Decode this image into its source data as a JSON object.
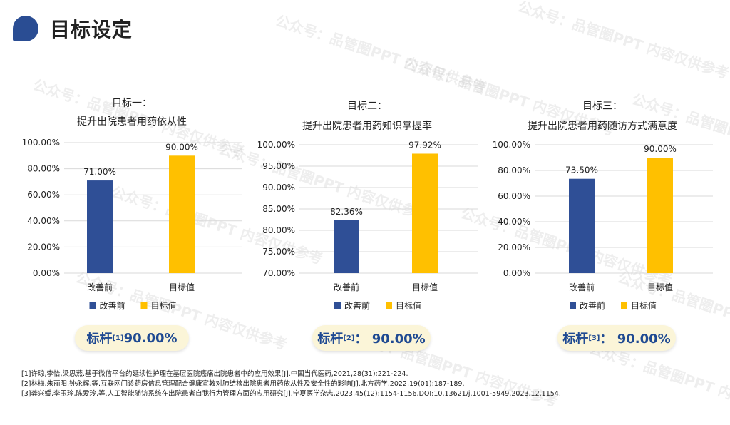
{
  "header": {
    "title": "目标设定"
  },
  "watermark": {
    "text": "公众号：品管圈PPT 内容仅供参考"
  },
  "legend": {
    "before": "改善前",
    "target": "目标值"
  },
  "colors": {
    "before": "#2f4f96",
    "target": "#ffc000",
    "accent": "#1f4a92",
    "benchmark_bg": "#fbf5d8"
  },
  "chart_data": [
    {
      "type": "bar",
      "title_line1": "目标一：",
      "title_line2": "提升出院患者用药依从性",
      "categories": [
        "改善前",
        "目标值"
      ],
      "values": [
        71.0,
        90.0
      ],
      "value_labels": [
        "71.00%",
        "90.00%"
      ],
      "ylim": [
        0,
        100
      ],
      "ticks": [
        "0.00%",
        "20.00%",
        "40.00%",
        "60.00%",
        "80.00%",
        "100.00%"
      ],
      "tick_values": [
        0,
        20,
        40,
        60,
        80,
        100
      ]
    },
    {
      "type": "bar",
      "title_line1": "目标二：",
      "title_line2": "提升出院患者用药知识掌握率",
      "categories": [
        "改善前",
        "目标值"
      ],
      "values": [
        82.36,
        97.92
      ],
      "value_labels": [
        "82.36%",
        "97.92%"
      ],
      "ylim": [
        70,
        100
      ],
      "ticks": [
        "70.00%",
        "75.00%",
        "80.00%",
        "85.00%",
        "90.00%",
        "95.00%",
        "100.00%"
      ],
      "tick_values": [
        70,
        75,
        80,
        85,
        90,
        95,
        100
      ]
    },
    {
      "type": "bar",
      "title_line1": "目标三：",
      "title_line2": "提升出院患者用药随访方式满意度",
      "categories": [
        "改善前",
        "目标值"
      ],
      "values": [
        73.5,
        90.0
      ],
      "value_labels": [
        "73.50%",
        "90.00%"
      ],
      "ylim": [
        0,
        100
      ],
      "ticks": [
        "0.00%",
        "20.00%",
        "40.00%",
        "60.00%",
        "80.00%",
        "100.00%"
      ],
      "tick_values": [
        0,
        20,
        40,
        60,
        80,
        100
      ]
    }
  ],
  "benchmarks": [
    {
      "label": "标杆",
      "ref": "[1]",
      "value": " 90.00%"
    },
    {
      "label": "标杆",
      "ref": "[2]",
      "value": "： 90.00%"
    },
    {
      "label": "标杆",
      "ref": "[3]",
      "value": "： 90.00%"
    }
  ],
  "references": [
    "[1]许琼,李恰,梁思燕.基于微信平台的延续性护理在基层医院癌痛出院患者中的应用效果[J].中国当代医药,2021,28(31):221-224.",
    "[2]林梅,朱丽阳,钟永辉,等.互联网门诊药房信息管理配合健康宣教对肺结核出院患者用药依从性及安全性的影响[J].北方药学,2022,19(01):187-189.",
    "[3]龚兴媛,李玉玲,陈爱玲,等.人工智能随访系统在出院患者自我行为管理方面的应用研究[J].宁夏医学杂志,2023,45(12):1154-1156.DOI:10.13621/j.1001-5949.2023.12.1154."
  ]
}
